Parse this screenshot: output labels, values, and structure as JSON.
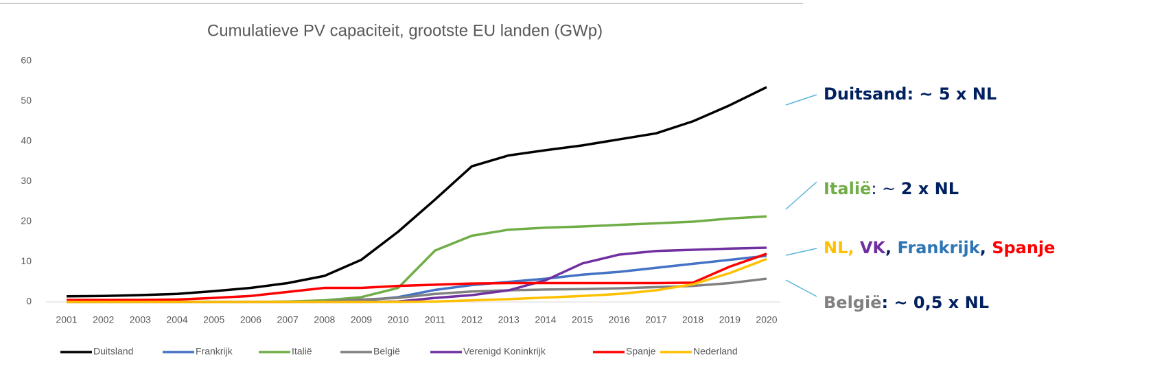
{
  "chart_data": {
    "type": "line",
    "title": "Cumulatieve PV capaciteit, grootste EU landen (GWp)",
    "categories": [
      "2001",
      "2002",
      "2003",
      "2004",
      "2005",
      "2006",
      "2007",
      "2008",
      "2009",
      "2010",
      "2011",
      "2012",
      "2013",
      "2014",
      "2015",
      "2016",
      "2017",
      "2018",
      "2019",
      "2020"
    ],
    "ylim": [
      0,
      60
    ],
    "yticks": [
      0,
      10,
      20,
      30,
      40,
      50,
      60
    ],
    "grid": false,
    "legend": "bottom",
    "series": [
      {
        "name": "Duitsland",
        "color": "#000000",
        "values": [
          1.4,
          1.5,
          1.7,
          2.0,
          2.7,
          3.5,
          4.7,
          6.5,
          10.5,
          17.5,
          25.5,
          33.8,
          36.5,
          37.8,
          39,
          40.5,
          42,
          45,
          49,
          53.5
        ]
      },
      {
        "name": "Frankrijk",
        "color": "#4472c4",
        "values": [
          0,
          0,
          0,
          0,
          0,
          0,
          0,
          0.1,
          0.3,
          1.2,
          3,
          4.2,
          5,
          5.8,
          6.8,
          7.5,
          8.5,
          9.5,
          10.5,
          11.5
        ]
      },
      {
        "name": "Italië",
        "color": "#70ad47",
        "values": [
          0,
          0,
          0,
          0,
          0,
          0,
          0.1,
          0.4,
          1.2,
          3.5,
          12.8,
          16.5,
          18,
          18.5,
          18.8,
          19.2,
          19.6,
          20,
          20.8,
          21.3
        ]
      },
      {
        "name": "België",
        "color": "#808080",
        "values": [
          0,
          0,
          0,
          0,
          0,
          0,
          0,
          0.1,
          0.6,
          1,
          2,
          2.6,
          2.9,
          3.1,
          3.2,
          3.4,
          3.7,
          4,
          4.7,
          5.8
        ]
      },
      {
        "name": "Verenigd Koninkrijk",
        "color": "#7030a0",
        "values": [
          0,
          0,
          0,
          0,
          0,
          0,
          0,
          0,
          0,
          0.1,
          1,
          1.7,
          2.9,
          5.4,
          9.6,
          11.8,
          12.7,
          13,
          13.3,
          13.5
        ]
      },
      {
        "name": "Spanje",
        "color": "#ff0000",
        "values": [
          0.5,
          0.5,
          0.5,
          0.6,
          1,
          1.5,
          2.5,
          3.5,
          3.5,
          4,
          4.3,
          4.6,
          4.7,
          4.7,
          4.7,
          4.7,
          4.7,
          4.8,
          8.8,
          12
        ]
      },
      {
        "name": "Nederland",
        "color": "#ffc000",
        "values": [
          0,
          0,
          0,
          0,
          0,
          0,
          0,
          0,
          0,
          0,
          0.1,
          0.4,
          0.7,
          1.1,
          1.5,
          2,
          2.9,
          4.4,
          7.2,
          10.7
        ]
      }
    ]
  },
  "annotations": [
    {
      "parts": [
        {
          "text": "Duitsand: ~ 5 x NL",
          "color": "#002060",
          "bold": true
        }
      ]
    },
    {
      "parts": [
        {
          "text": "Italië",
          "color": "#70ad47",
          "bold": true
        },
        {
          "text": ": ~ ",
          "color": "#002060",
          "bold": false
        },
        {
          "text": "2 x NL",
          "color": "#002060",
          "bold": true
        }
      ]
    },
    {
      "parts": [
        {
          "text": "NL, ",
          "color": "#ffc000",
          "bold": true
        },
        {
          "text": "VK",
          "color": "#7030a0",
          "bold": true
        },
        {
          "text": ", ",
          "color": "#002060",
          "bold": true
        },
        {
          "text": "Frankrijk",
          "color": "#2e75b6",
          "bold": true
        },
        {
          "text": ", ",
          "color": "#002060",
          "bold": true
        },
        {
          "text": "Spanje",
          "color": "#ff0000",
          "bold": true
        }
      ]
    },
    {
      "parts": [
        {
          "text": "België",
          "color": "#808080",
          "bold": true
        },
        {
          "text": ": ~ 0,5 x NL",
          "color": "#002060",
          "bold": true
        }
      ]
    }
  ]
}
